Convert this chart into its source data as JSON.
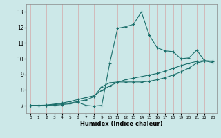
{
  "xlabel": "Humidex (Indice chaleur)",
  "xlim": [
    -0.5,
    23.5
  ],
  "ylim": [
    6.5,
    13.5
  ],
  "xticks": [
    0,
    1,
    2,
    3,
    4,
    5,
    6,
    7,
    8,
    9,
    10,
    11,
    12,
    13,
    14,
    15,
    16,
    17,
    18,
    19,
    20,
    21,
    22,
    23
  ],
  "yticks": [
    7,
    8,
    9,
    10,
    11,
    12,
    13
  ],
  "background_color": "#cce8e8",
  "grid_color": "#b8d8d8",
  "line_color": "#1a6e6a",
  "line1_y": [
    7.0,
    7.0,
    7.0,
    7.0,
    7.05,
    7.1,
    7.2,
    7.0,
    6.95,
    7.0,
    9.7,
    11.95,
    12.05,
    12.2,
    13.0,
    11.5,
    10.7,
    10.5,
    10.45,
    10.0,
    10.05,
    10.55,
    9.85,
    9.75
  ],
  "line2_y": [
    7.0,
    7.0,
    7.0,
    7.05,
    7.1,
    7.15,
    7.25,
    7.35,
    7.55,
    8.2,
    8.45,
    8.5,
    8.5,
    8.5,
    8.5,
    8.55,
    8.65,
    8.78,
    8.95,
    9.15,
    9.4,
    9.72,
    9.85,
    9.85
  ],
  "line3_y": [
    7.0,
    7.0,
    7.02,
    7.08,
    7.15,
    7.25,
    7.38,
    7.5,
    7.62,
    7.95,
    8.25,
    8.48,
    8.65,
    8.75,
    8.85,
    8.95,
    9.05,
    9.2,
    9.38,
    9.55,
    9.7,
    9.82,
    9.88,
    9.82
  ]
}
